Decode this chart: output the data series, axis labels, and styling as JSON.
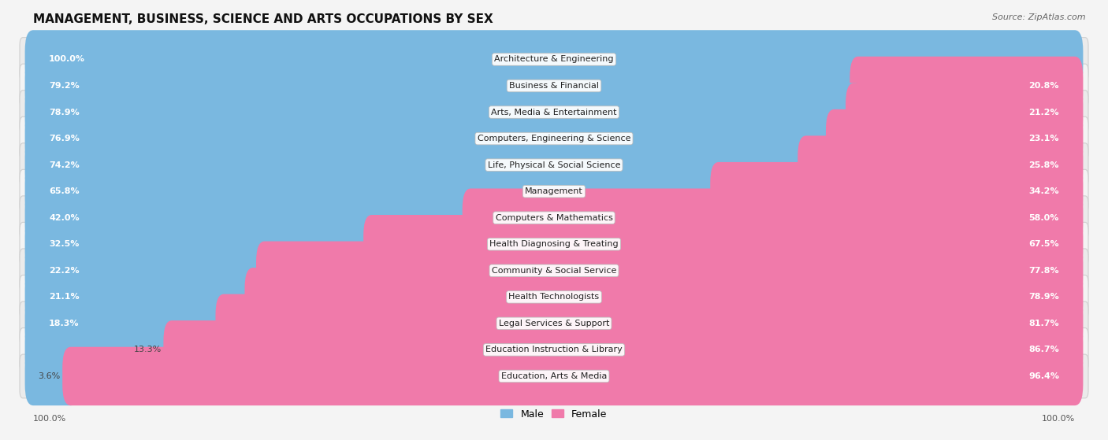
{
  "title": "MANAGEMENT, BUSINESS, SCIENCE AND ARTS OCCUPATIONS BY SEX",
  "source": "Source: ZipAtlas.com",
  "categories": [
    "Architecture & Engineering",
    "Business & Financial",
    "Arts, Media & Entertainment",
    "Computers, Engineering & Science",
    "Life, Physical & Social Science",
    "Management",
    "Computers & Mathematics",
    "Health Diagnosing & Treating",
    "Community & Social Service",
    "Health Technologists",
    "Legal Services & Support",
    "Education Instruction & Library",
    "Education, Arts & Media"
  ],
  "male_pct": [
    100.0,
    79.2,
    78.9,
    76.9,
    74.2,
    65.8,
    42.0,
    32.5,
    22.2,
    21.1,
    18.3,
    13.3,
    3.6
  ],
  "female_pct": [
    0.0,
    20.8,
    21.2,
    23.1,
    25.8,
    34.2,
    58.0,
    67.5,
    77.8,
    78.9,
    81.7,
    86.7,
    96.4
  ],
  "male_color": "#7ab8e0",
  "female_color": "#f07aaa",
  "bg_color": "#f4f4f4",
  "row_color_even": "#ebebeb",
  "row_color_odd": "#f4f4f4",
  "title_fontsize": 11,
  "label_fontsize": 8,
  "category_fontsize": 8,
  "bar_height": 0.62,
  "figsize": [
    14.06,
    5.59
  ]
}
